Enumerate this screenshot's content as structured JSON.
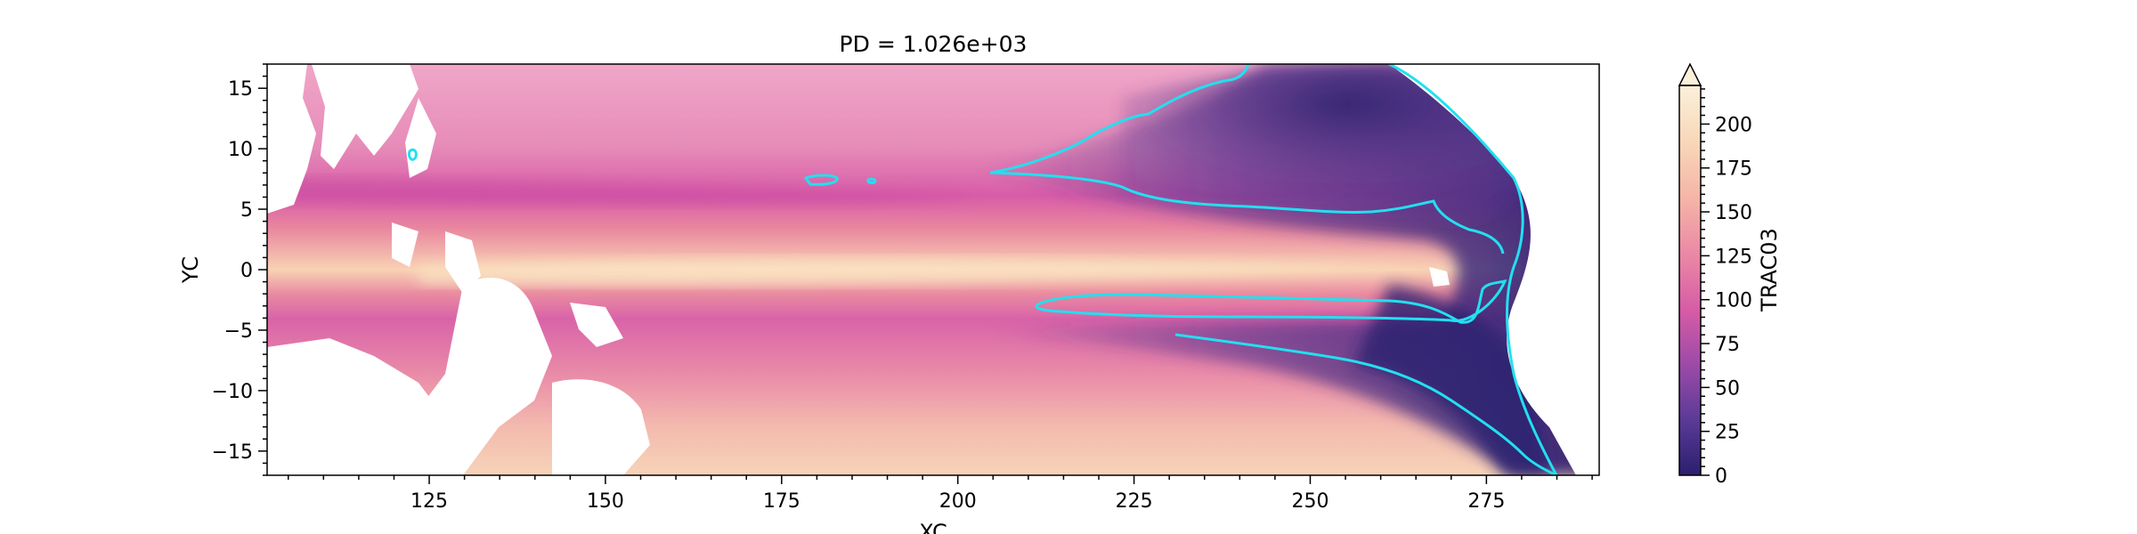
{
  "chart_data": {
    "type": "heatmap",
    "title": "PD = 1.026e+03",
    "xlabel": "XC",
    "ylabel": "YC",
    "xlim": [
      102,
      291
    ],
    "ylim": [
      -17,
      17
    ],
    "x_ticks": [
      125,
      150,
      175,
      200,
      225,
      250,
      275
    ],
    "x_tick_labels": [
      "125",
      "150",
      "175",
      "200",
      "225",
      "250",
      "275"
    ],
    "y_ticks": [
      15,
      10,
      5,
      0,
      -5,
      -10,
      -15
    ],
    "y_tick_labels": [
      "15",
      "10",
      "5",
      "0",
      "−5",
      "−10",
      "−15"
    ],
    "colorbar": {
      "label": "TRAC03",
      "range": [
        0,
        222
      ],
      "extend": "max",
      "ticks": [
        0,
        25,
        50,
        75,
        100,
        125,
        150,
        175,
        200
      ],
      "tick_labels": [
        "0",
        "25",
        "50",
        "75",
        "100",
        "125",
        "150",
        "175",
        "200"
      ],
      "colors": [
        "#2b1f6e",
        "#5a3a96",
        "#9b4aa8",
        "#d55ba6",
        "#ea86a6",
        "#f4b2a6",
        "#f8d6b8",
        "#fbf0da"
      ]
    },
    "contour": {
      "color": "#22e0f0",
      "level_note": ""
    },
    "land_color": "#ffffff"
  }
}
